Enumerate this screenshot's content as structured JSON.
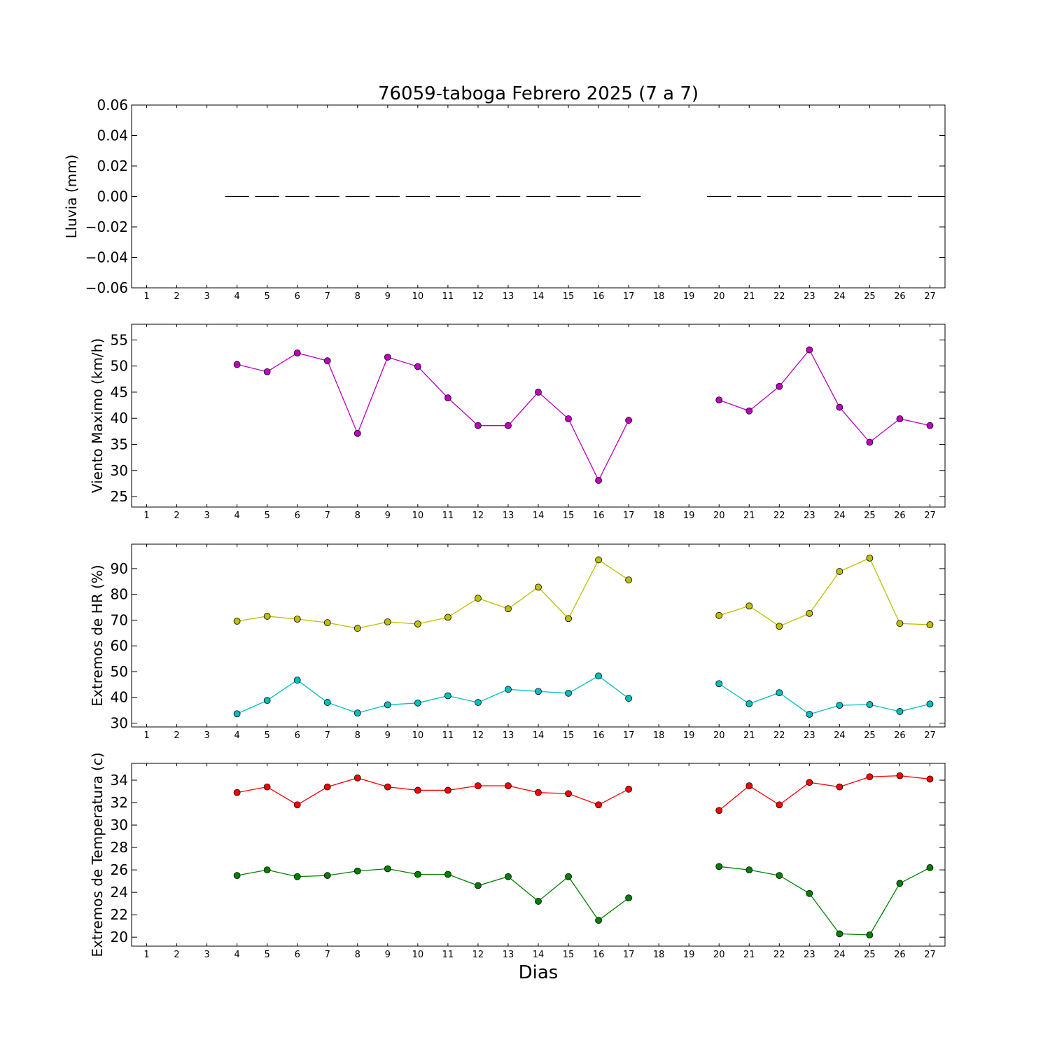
{
  "title": "76059-taboga Febrero 2025  (7 a 7)",
  "xlabel": "Dias",
  "colors": {
    "rain": "#000000",
    "wind": "#bf00bf",
    "hr_max": "#bfbf00",
    "hr_min": "#00bfbf",
    "temp_max": "#ff0000",
    "temp_min": "#008000"
  },
  "chart_data": [
    {
      "type": "bar",
      "ylabel": "Lluvia (mm)",
      "ylim": [
        -0.06,
        0.06
      ],
      "yticks": [
        "0.06",
        "0.04",
        "0.02",
        "0.00",
        "−0.02",
        "−0.04",
        "−0.06"
      ],
      "ytick_values": [
        0.06,
        0.04,
        0.02,
        0.0,
        -0.02,
        -0.04,
        -0.06
      ],
      "xlim": [
        0.5,
        27.5
      ],
      "categories": [
        "1",
        "2",
        "3",
        "4",
        "5",
        "6",
        "7",
        "8",
        "9",
        "10",
        "11",
        "12",
        "13",
        "14",
        "15",
        "16",
        "17",
        "18",
        "19",
        "20",
        "21",
        "22",
        "23",
        "24",
        "25",
        "26",
        "27"
      ],
      "values": [
        null,
        null,
        null,
        0,
        0,
        0,
        0,
        0,
        0,
        0,
        0,
        0,
        0,
        0,
        0,
        0,
        0,
        null,
        null,
        0,
        0,
        0,
        0,
        0,
        0,
        0,
        0
      ]
    },
    {
      "type": "line",
      "ylabel": "Viento Maximo (km/h)",
      "ylim": [
        23,
        58
      ],
      "yticks": [
        "55",
        "50",
        "45",
        "40",
        "35",
        "30",
        "25"
      ],
      "ytick_values": [
        55,
        50,
        45,
        40,
        35,
        30,
        25
      ],
      "xlim": [
        0.5,
        27.5
      ],
      "categories": [
        "1",
        "2",
        "3",
        "4",
        "5",
        "6",
        "7",
        "8",
        "9",
        "10",
        "11",
        "12",
        "13",
        "14",
        "15",
        "16",
        "17",
        "18",
        "19",
        "20",
        "21",
        "22",
        "23",
        "24",
        "25",
        "26",
        "27"
      ],
      "series": [
        {
          "color_key": "wind",
          "values": [
            null,
            null,
            null,
            50.3,
            48.9,
            52.5,
            51.0,
            37.1,
            51.7,
            49.9,
            43.9,
            38.6,
            38.6,
            45.0,
            39.9,
            28.1,
            39.6,
            null,
            null,
            43.5,
            41.4,
            46.1,
            53.1,
            42.1,
            35.4,
            39.9,
            38.6
          ]
        }
      ]
    },
    {
      "type": "line",
      "ylabel": "Extremos de HR (%)",
      "ylim": [
        28.5,
        99.5
      ],
      "yticks": [
        "90",
        "80",
        "70",
        "60",
        "50",
        "40",
        "30"
      ],
      "ytick_values": [
        90,
        80,
        70,
        60,
        50,
        40,
        30
      ],
      "xlim": [
        0.5,
        27.5
      ],
      "categories": [
        "1",
        "2",
        "3",
        "4",
        "5",
        "6",
        "7",
        "8",
        "9",
        "10",
        "11",
        "12",
        "13",
        "14",
        "15",
        "16",
        "17",
        "18",
        "19",
        "20",
        "21",
        "22",
        "23",
        "24",
        "25",
        "26",
        "27"
      ],
      "series": [
        {
          "color_key": "hr_max",
          "values": [
            null,
            null,
            null,
            69.6,
            71.5,
            70.4,
            69.0,
            66.8,
            69.3,
            68.5,
            71.1,
            78.5,
            74.4,
            82.8,
            70.6,
            93.4,
            85.6,
            null,
            null,
            71.8,
            75.5,
            67.6,
            72.6,
            88.9,
            94.1,
            68.7,
            68.2
          ]
        },
        {
          "color_key": "hr_min",
          "values": [
            null,
            null,
            null,
            33.6,
            38.8,
            46.7,
            38.0,
            33.9,
            37.1,
            37.8,
            40.6,
            38.0,
            43.1,
            42.3,
            41.6,
            48.3,
            39.6,
            null,
            null,
            45.3,
            37.5,
            41.8,
            33.4,
            36.9,
            37.2,
            34.5,
            37.4
          ]
        }
      ]
    },
    {
      "type": "line",
      "ylabel": "Extremos de Temperatura (c)",
      "ylim": [
        19.2,
        35.5
      ],
      "yticks": [
        "34",
        "32",
        "30",
        "28",
        "26",
        "24",
        "22",
        "20"
      ],
      "ytick_values": [
        34,
        32,
        30,
        28,
        26,
        24,
        22,
        20
      ],
      "xlim": [
        0.5,
        27.5
      ],
      "categories": [
        "1",
        "2",
        "3",
        "4",
        "5",
        "6",
        "7",
        "8",
        "9",
        "10",
        "11",
        "12",
        "13",
        "14",
        "15",
        "16",
        "17",
        "18",
        "19",
        "20",
        "21",
        "22",
        "23",
        "24",
        "25",
        "26",
        "27"
      ],
      "series": [
        {
          "color_key": "temp_max",
          "values": [
            null,
            null,
            null,
            32.9,
            33.4,
            31.8,
            33.4,
            34.2,
            33.4,
            33.1,
            33.1,
            33.5,
            33.5,
            32.9,
            32.8,
            31.8,
            33.2,
            null,
            null,
            31.3,
            33.5,
            31.8,
            33.8,
            33.4,
            34.3,
            34.4,
            34.1
          ]
        },
        {
          "color_key": "temp_min",
          "values": [
            null,
            null,
            null,
            25.5,
            26.0,
            25.4,
            25.5,
            25.9,
            26.1,
            25.6,
            25.6,
            24.6,
            25.4,
            23.2,
            25.4,
            21.5,
            23.5,
            null,
            null,
            26.3,
            26.0,
            25.5,
            23.9,
            20.3,
            20.2,
            24.8,
            26.2
          ]
        }
      ]
    }
  ]
}
